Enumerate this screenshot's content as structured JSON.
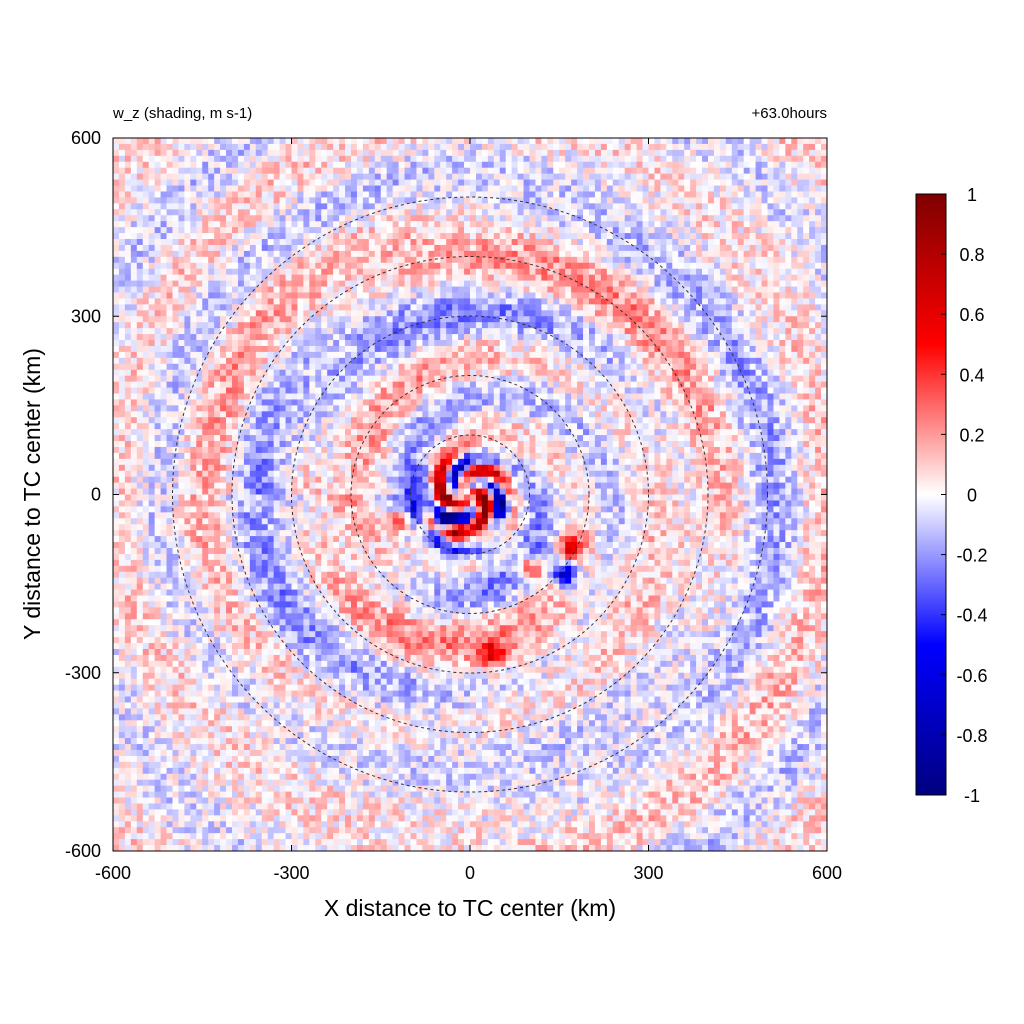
{
  "chart_data": {
    "type": "heatmap",
    "title_left": "w_z (shading, m s-1)",
    "title_right": "+63.0hours",
    "xlabel": "X distance to TC center (km)",
    "ylabel": "Y distance to TC center (km)",
    "xlim": [
      -600,
      600
    ],
    "ylim": [
      -600,
      600
    ],
    "x_ticks": [
      -600,
      -300,
      0,
      300,
      600
    ],
    "y_ticks": [
      -600,
      -300,
      0,
      300,
      600
    ],
    "x_tick_labels": [
      "-600",
      "-300",
      "0",
      "300",
      "600"
    ],
    "y_tick_labels": [
      "-600",
      "-300",
      "0",
      "300",
      "600"
    ],
    "colorbar": {
      "range": [
        -1,
        1
      ],
      "ticks": [
        1,
        0.8,
        0.6,
        0.4,
        0.2,
        0,
        -0.2,
        -0.4,
        -0.6,
        -0.8,
        -1
      ],
      "tick_labels": [
        "1",
        "0.8",
        "0.6",
        "0.4",
        "0.2",
        "0",
        "-0.2",
        "-0.4",
        "-0.6",
        "-0.8",
        "-1"
      ],
      "colors": [
        "#00007f",
        "#0000ff",
        "#ffffff",
        "#ff0000",
        "#7f0000"
      ]
    },
    "range_rings_km": [
      100,
      200,
      300,
      400,
      500
    ],
    "ring_center_km": [
      0,
      0
    ],
    "field_description_values": {
      "eyewall_max": 1.0,
      "eyewall_min": -1.0,
      "background_amplitude": 0.15
    }
  }
}
